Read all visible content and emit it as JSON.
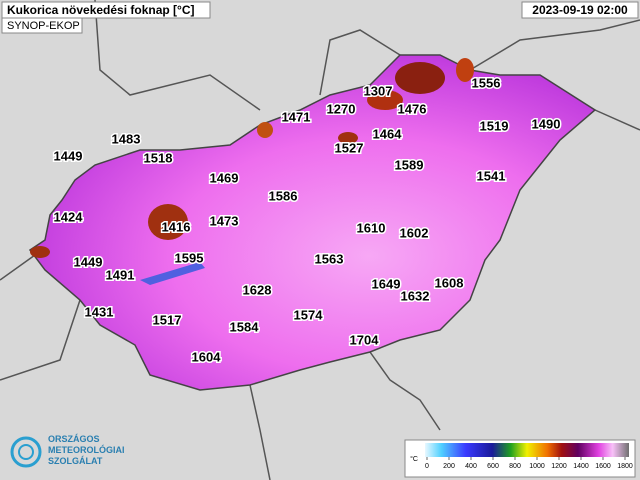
{
  "header": {
    "title": "Kukorica növekedési foknap [°C]",
    "subtitle": "SYNOP-EKOP",
    "timestamp": "2023-09-19 02:00"
  },
  "stations": [
    1449,
    1483,
    1518,
    1424,
    1416,
    1469,
    1473,
    1586,
    1471,
    1270,
    1307,
    1476,
    1464,
    1527,
    1556,
    1519,
    1490,
    1589,
    1541,
    1610,
    1602,
    1449,
    1491,
    1595,
    1563,
    1628,
    1649,
    1608,
    1632,
    1431,
    1517,
    1584,
    1574,
    1704,
    1604
  ],
  "colorbar": {
    "unit": "°C",
    "ticks": [
      0,
      200,
      400,
      600,
      800,
      1000,
      1200,
      1400,
      1600,
      1800
    ]
  },
  "logo": {
    "lines": [
      "ORSZÁGOS",
      "METEOROLÓGIAI",
      "SZOLGÁLAT"
    ]
  }
}
